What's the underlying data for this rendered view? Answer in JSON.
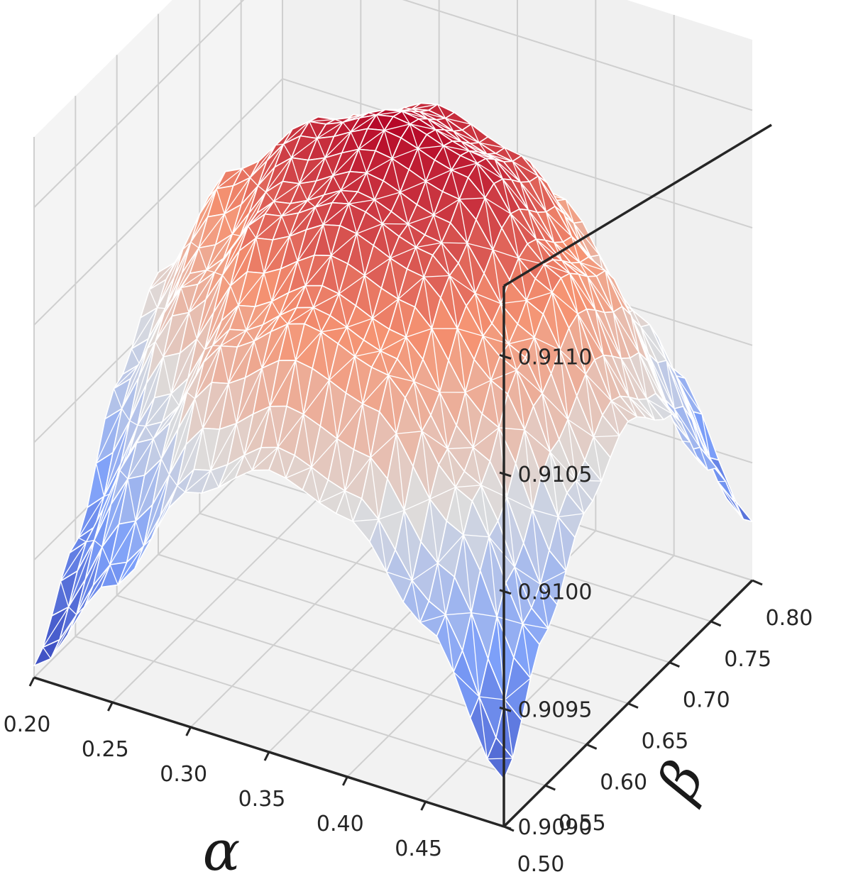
{
  "chart_data": {
    "type": "surface",
    "title": "",
    "xlabel": "α",
    "ylabel": "β",
    "zlabel": "",
    "xlim": [
      0.2,
      0.5
    ],
    "ylim": [
      0.5,
      0.8
    ],
    "zlim": [
      0.909,
      0.9113
    ],
    "x_ticks": [
      "0.20",
      "0.25",
      "0.30",
      "0.35",
      "0.40",
      "0.45"
    ],
    "y_ticks": [
      "0.50",
      "0.55",
      "0.60",
      "0.65",
      "0.70",
      "0.75",
      "0.80"
    ],
    "z_ticks": [
      "0.9090",
      "0.9095",
      "0.9100",
      "0.9105",
      "0.9110"
    ],
    "colormap": "coolwarm",
    "grid": true,
    "mesh_color": "#ffffff",
    "pane_color": "#f2f2f2",
    "grid_color": "#cfcfcf",
    "axis_color": "#262626",
    "surface_samples": {
      "alpha": [
        0.2,
        0.25,
        0.3,
        0.35,
        0.4,
        0.45,
        0.5
      ],
      "beta": [
        0.5,
        0.55,
        0.6,
        0.65,
        0.7,
        0.75,
        0.8
      ],
      "z": [
        [
          0.90905,
          0.9094,
          0.9099,
          0.9102,
          0.90995,
          0.90945,
          0.9091
        ],
        [
          0.9095,
          0.91,
          0.91045,
          0.91075,
          0.9105,
          0.91005,
          0.90955
        ],
        [
          0.91,
          0.9105,
          0.91085,
          0.91105,
          0.9109,
          0.9105,
          0.91
        ],
        [
          0.9102,
          0.9107,
          0.911,
          0.91118,
          0.91105,
          0.9107,
          0.9102
        ],
        [
          0.9101,
          0.9106,
          0.9109,
          0.9111,
          0.91095,
          0.9106,
          0.9101
        ],
        [
          0.90975,
          0.9102,
          0.91055,
          0.91075,
          0.9106,
          0.9102,
          0.9098
        ],
        [
          0.9092,
          0.90965,
          0.91,
          0.9102,
          0.91005,
          0.90965,
          0.90925
        ]
      ]
    }
  }
}
